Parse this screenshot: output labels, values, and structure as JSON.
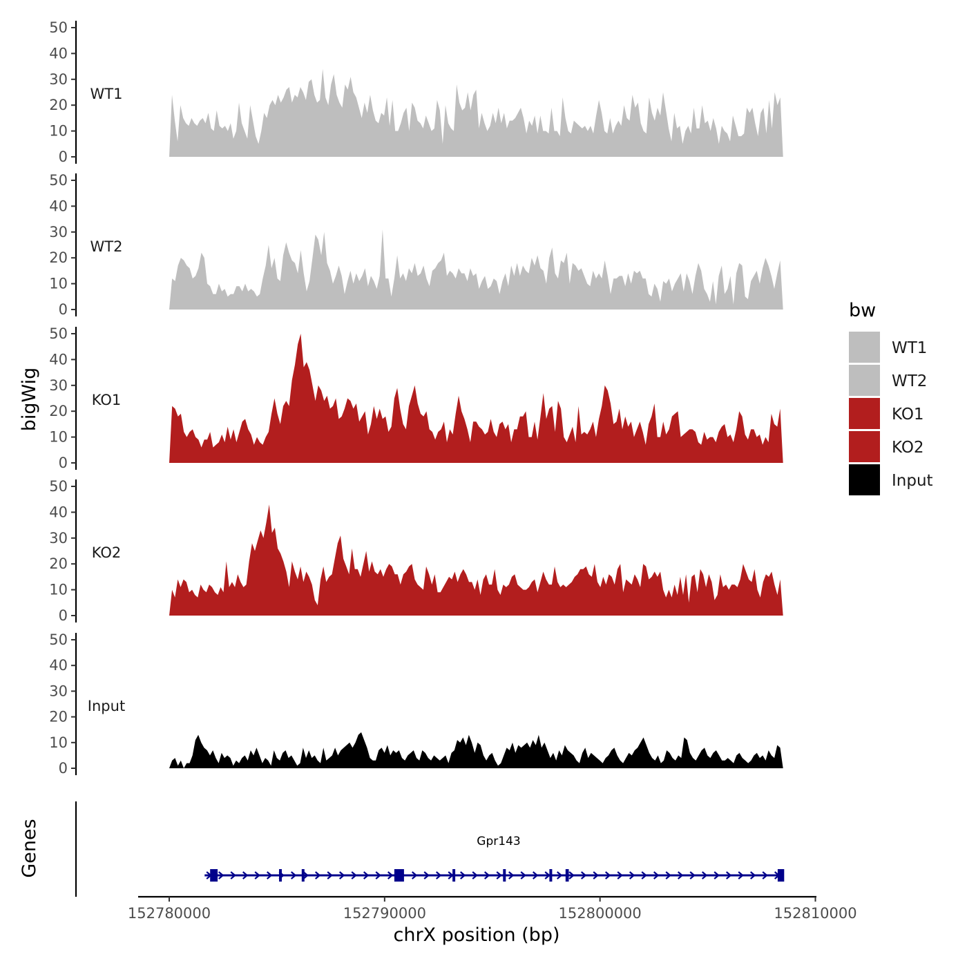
{
  "chart_data": {
    "type": "area",
    "title": "",
    "ylabel": "bigWig",
    "xlabel": "chrX position (bp)",
    "gene_panel_label": "Genes",
    "xlim": [
      152780000,
      152810000
    ],
    "x_ticks": [
      152780000,
      152790000,
      152800000,
      152810000
    ],
    "x_tick_labels": [
      "152780000",
      "152790000",
      "152800000",
      "152810000"
    ],
    "ylim": [
      0,
      50
    ],
    "y_ticks": [
      0,
      10,
      20,
      30,
      40,
      50
    ],
    "y_tick_labels": [
      "0",
      "10",
      "20",
      "30",
      "40",
      "50"
    ],
    "track_range": [
      152780000,
      152808500
    ],
    "series": [
      {
        "name": "WT1",
        "color": "#bebebe",
        "values": [
          0,
          24,
          14,
          6,
          20,
          15,
          13,
          12,
          15,
          13,
          12,
          14,
          15,
          13,
          17,
          11,
          10,
          18,
          12,
          11,
          12,
          10,
          13,
          7,
          10,
          21,
          13,
          10,
          7,
          20,
          14,
          8,
          5,
          10,
          17,
          15,
          20,
          22,
          20,
          24,
          21,
          23,
          26,
          27,
          21,
          24,
          23,
          27,
          25,
          22,
          29,
          30,
          24,
          21,
          22,
          34,
          23,
          20,
          28,
          32,
          24,
          21,
          19,
          28,
          26,
          31,
          25,
          23,
          19,
          15,
          21,
          17,
          24,
          18,
          14,
          13,
          17,
          16,
          23,
          12,
          22,
          10,
          10,
          13,
          17,
          19,
          10,
          21,
          19,
          14,
          13,
          11,
          16,
          13,
          10,
          11,
          22,
          18,
          5,
          20,
          13,
          11,
          10,
          28,
          21,
          18,
          19,
          25,
          18,
          24,
          26,
          11,
          17,
          13,
          10,
          12,
          17,
          13,
          19,
          13,
          17,
          11,
          14,
          14,
          15,
          17,
          19,
          15,
          9,
          14,
          12,
          16,
          9,
          16,
          10,
          10,
          9,
          19,
          10,
          10,
          8,
          23,
          15,
          10,
          9,
          14,
          13,
          12,
          11,
          12,
          10,
          12,
          9,
          16,
          22,
          17,
          10,
          9,
          15,
          9,
          12,
          14,
          12,
          20,
          15,
          14,
          24,
          19,
          21,
          13,
          10,
          9,
          23,
          17,
          14,
          19,
          16,
          25,
          18,
          11,
          6,
          17,
          11,
          12,
          5,
          10,
          12,
          9,
          19,
          11,
          11,
          20,
          13,
          14,
          10,
          15,
          11,
          5,
          12,
          10,
          9,
          6,
          16,
          12,
          8,
          8,
          9,
          19,
          17,
          19,
          13,
          8,
          17,
          19,
          9,
          22,
          11,
          25,
          20,
          23,
          0
        ]
      },
      {
        "name": "WT2",
        "color": "#bebebe",
        "values": [
          0,
          12,
          11,
          17,
          20,
          19,
          17,
          16,
          12,
          13,
          16,
          22,
          20,
          10,
          9,
          6,
          6,
          10,
          7,
          8,
          5,
          6,
          6,
          9,
          9,
          7,
          10,
          7,
          8,
          7,
          5,
          6,
          12,
          17,
          25,
          16,
          20,
          12,
          11,
          21,
          26,
          22,
          19,
          18,
          14,
          23,
          14,
          7,
          11,
          20,
          29,
          27,
          21,
          30,
          18,
          15,
          10,
          13,
          17,
          13,
          6,
          11,
          15,
          10,
          14,
          11,
          13,
          16,
          9,
          13,
          11,
          8,
          13,
          31,
          12,
          12,
          5,
          12,
          21,
          12,
          14,
          11,
          16,
          14,
          18,
          13,
          14,
          17,
          12,
          9,
          15,
          16,
          18,
          19,
          22,
          13,
          15,
          14,
          12,
          16,
          14,
          14,
          11,
          16,
          13,
          14,
          8,
          11,
          13,
          8,
          9,
          12,
          11,
          6,
          11,
          14,
          9,
          17,
          13,
          18,
          13,
          17,
          15,
          14,
          20,
          17,
          21,
          16,
          15,
          10,
          20,
          24,
          14,
          12,
          19,
          18,
          22,
          10,
          18,
          17,
          15,
          16,
          13,
          10,
          9,
          15,
          12,
          14,
          12,
          19,
          13,
          6,
          12,
          12,
          13,
          13,
          9,
          14,
          10,
          15,
          14,
          15,
          12,
          12,
          6,
          5,
          10,
          8,
          3,
          11,
          10,
          12,
          7,
          10,
          12,
          14,
          7,
          14,
          11,
          6,
          13,
          18,
          15,
          8,
          6,
          3,
          11,
          2,
          13,
          17,
          6,
          8,
          13,
          2,
          14,
          18,
          17,
          5,
          4,
          11,
          13,
          15,
          10,
          16,
          20,
          17,
          13,
          8,
          14,
          19,
          0
        ]
      },
      {
        "name": "KO1",
        "color": "#b21e1e",
        "values": [
          0,
          22,
          21,
          18,
          19,
          12,
          10,
          12,
          13,
          10,
          9,
          6,
          9,
          9,
          12,
          6,
          7,
          8,
          11,
          8,
          14,
          9,
          13,
          8,
          12,
          16,
          17,
          13,
          11,
          7,
          10,
          8,
          7,
          10,
          12,
          19,
          25,
          19,
          15,
          22,
          24,
          22,
          32,
          38,
          46,
          50,
          37,
          39,
          36,
          30,
          24,
          30,
          28,
          24,
          26,
          21,
          22,
          25,
          17,
          18,
          21,
          25,
          24,
          21,
          23,
          16,
          18,
          20,
          11,
          15,
          22,
          17,
          21,
          17,
          18,
          12,
          14,
          25,
          29,
          21,
          15,
          13,
          22,
          26,
          30,
          23,
          19,
          18,
          20,
          13,
          12,
          9,
          12,
          13,
          16,
          8,
          13,
          11,
          19,
          26,
          20,
          17,
          13,
          8,
          16,
          16,
          14,
          13,
          11,
          12,
          17,
          12,
          10,
          15,
          16,
          13,
          15,
          8,
          13,
          13,
          18,
          18,
          20,
          10,
          10,
          16,
          9,
          18,
          27,
          17,
          21,
          22,
          12,
          24,
          21,
          10,
          8,
          11,
          14,
          8,
          22,
          11,
          12,
          11,
          13,
          16,
          10,
          17,
          22,
          30,
          28,
          23,
          15,
          16,
          21,
          13,
          18,
          14,
          16,
          10,
          13,
          16,
          12,
          7,
          15,
          18,
          23,
          10,
          10,
          16,
          11,
          13,
          18,
          19,
          20,
          10,
          11,
          12,
          13,
          13,
          12,
          8,
          7,
          12,
          9,
          10,
          10,
          8,
          12,
          14,
          15,
          10,
          11,
          8,
          13,
          20,
          18,
          11,
          9,
          13,
          13,
          10,
          11,
          7,
          10,
          8,
          19,
          15,
          14,
          21,
          0
        ]
      },
      {
        "name": "KO2",
        "color": "#b21e1e",
        "values": [
          0,
          10,
          7,
          14,
          11,
          14,
          13,
          9,
          10,
          8,
          7,
          12,
          10,
          9,
          12,
          11,
          9,
          8,
          11,
          9,
          21,
          11,
          13,
          11,
          16,
          13,
          11,
          12,
          21,
          28,
          25,
          29,
          33,
          30,
          36,
          43,
          32,
          34,
          26,
          24,
          21,
          17,
          11,
          21,
          17,
          14,
          19,
          13,
          17,
          15,
          12,
          6,
          4,
          14,
          19,
          13,
          15,
          16,
          22,
          28,
          31,
          22,
          19,
          16,
          26,
          18,
          18,
          15,
          20,
          25,
          17,
          21,
          17,
          16,
          18,
          15,
          18,
          20,
          19,
          16,
          16,
          12,
          16,
          17,
          19,
          20,
          14,
          12,
          11,
          10,
          19,
          16,
          12,
          16,
          9,
          9,
          11,
          13,
          15,
          14,
          17,
          13,
          16,
          18,
          16,
          13,
          13,
          10,
          14,
          8,
          14,
          16,
          12,
          12,
          18,
          10,
          8,
          12,
          11,
          12,
          15,
          16,
          12,
          11,
          10,
          10,
          11,
          13,
          14,
          9,
          13,
          17,
          14,
          12,
          12,
          19,
          13,
          11,
          12,
          11,
          12,
          13,
          15,
          16,
          18,
          18,
          19,
          16,
          15,
          20,
          13,
          11,
          15,
          12,
          16,
          15,
          12,
          18,
          20,
          9,
          14,
          13,
          12,
          16,
          14,
          11,
          20,
          19,
          14,
          15,
          17,
          15,
          17,
          10,
          7,
          10,
          7,
          12,
          8,
          15,
          8,
          16,
          5,
          15,
          16,
          9,
          18,
          16,
          11,
          16,
          13,
          6,
          8,
          16,
          11,
          12,
          10,
          12,
          12,
          11,
          14,
          20,
          17,
          14,
          13,
          18,
          10,
          7,
          13,
          16,
          15,
          17,
          12,
          8,
          14,
          0
        ]
      },
      {
        "name": "Input",
        "color": "#000000",
        "values": [
          0,
          3,
          4,
          1,
          3,
          0,
          2,
          2,
          5,
          11,
          13,
          10,
          8,
          7,
          5,
          7,
          4,
          2,
          6,
          4,
          5,
          4,
          1,
          3,
          2,
          4,
          5,
          3,
          7,
          5,
          8,
          5,
          2,
          4,
          3,
          1,
          7,
          4,
          3,
          6,
          7,
          4,
          5,
          3,
          1,
          2,
          8,
          4,
          7,
          4,
          5,
          3,
          2,
          8,
          3,
          4,
          5,
          8,
          5,
          7,
          8,
          9,
          10,
          8,
          10,
          13,
          14,
          11,
          8,
          4,
          3,
          3,
          7,
          8,
          6,
          9,
          5,
          7,
          6,
          7,
          4,
          3,
          5,
          6,
          7,
          4,
          3,
          7,
          6,
          4,
          3,
          5,
          4,
          3,
          4,
          5,
          2,
          6,
          7,
          11,
          10,
          12,
          9,
          13,
          10,
          6,
          10,
          9,
          5,
          3,
          5,
          6,
          3,
          1,
          2,
          5,
          8,
          7,
          10,
          6,
          9,
          8,
          9,
          10,
          8,
          11,
          9,
          13,
          8,
          10,
          7,
          4,
          6,
          3,
          7,
          5,
          9,
          7,
          6,
          5,
          3,
          2,
          6,
          8,
          4,
          6,
          5,
          4,
          3,
          2,
          4,
          5,
          7,
          8,
          5,
          3,
          2,
          4,
          6,
          5,
          7,
          8,
          10,
          12,
          9,
          6,
          4,
          3,
          5,
          2,
          3,
          7,
          6,
          4,
          3,
          5,
          4,
          12,
          11,
          6,
          4,
          3,
          5,
          7,
          8,
          5,
          4,
          6,
          7,
          5,
          3,
          3,
          4,
          3,
          2,
          5,
          6,
          4,
          3,
          2,
          3,
          5,
          6,
          4,
          5,
          3,
          7,
          5,
          4,
          9,
          8,
          0
        ]
      }
    ],
    "legend": {
      "title": "bw",
      "position": "right",
      "entries": [
        {
          "label": "WT1",
          "color": "#bebebe"
        },
        {
          "label": "WT2",
          "color": "#bebebe"
        },
        {
          "label": "KO1",
          "color": "#b21e1e"
        },
        {
          "label": "KO2",
          "color": "#b21e1e"
        },
        {
          "label": "Input",
          "color": "#000000"
        }
      ]
    },
    "gene": {
      "name": "Gpr143",
      "color": "#00008b",
      "strand": "+",
      "start": 152781900,
      "end": 152808500,
      "exons": [
        [
          152781900,
          152782250
        ],
        [
          152785100,
          152785200
        ],
        [
          152786150,
          152786250
        ],
        [
          152790450,
          152790900
        ],
        [
          152793150,
          152793250
        ],
        [
          152795500,
          152795600
        ],
        [
          152797650,
          152797750
        ],
        [
          152798400,
          152798550
        ],
        [
          152808250,
          152808550
        ]
      ]
    }
  }
}
